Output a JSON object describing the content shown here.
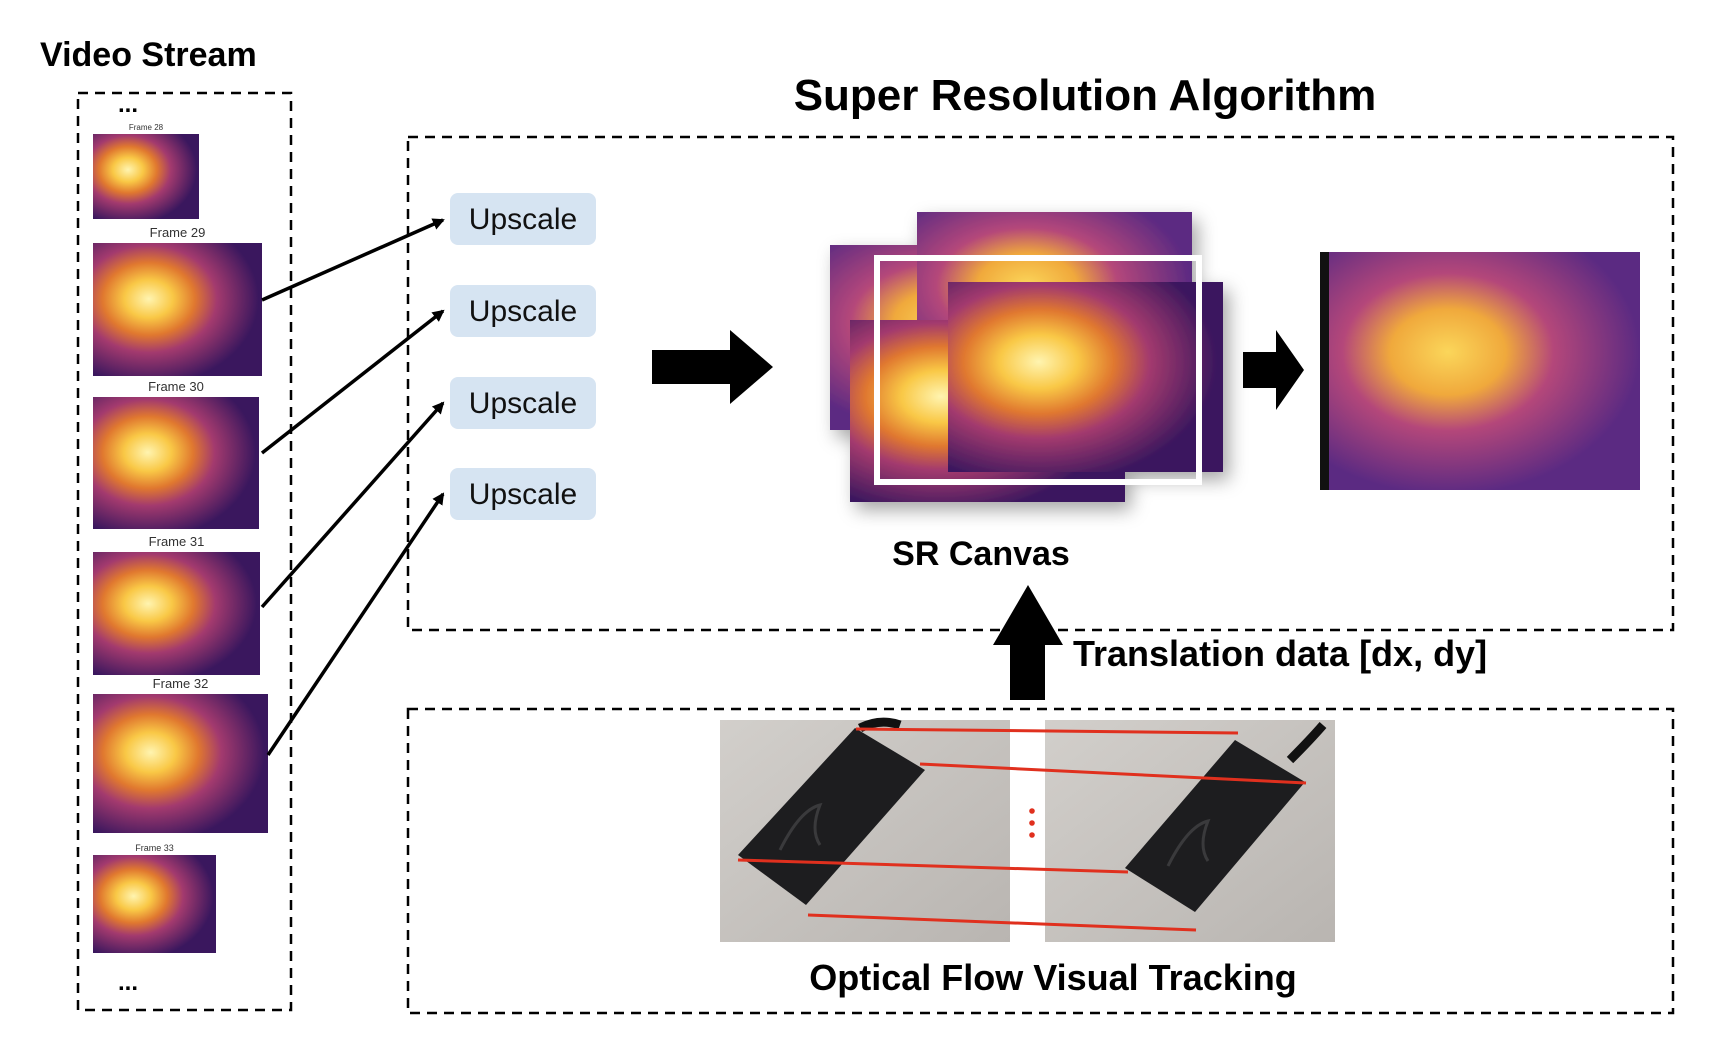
{
  "video_stream": {
    "title": "Video Stream",
    "ellipsis_top": "...",
    "ellipsis_bottom": "...",
    "frames": [
      {
        "label": "Frame 28"
      },
      {
        "label": "Frame 29"
      },
      {
        "label": "Frame 30"
      },
      {
        "label": "Frame 31"
      },
      {
        "label": "Frame 32"
      },
      {
        "label": "Frame 33"
      }
    ]
  },
  "sr_algorithm": {
    "title": "Super Resolution Algorithm",
    "upscale_buttons": [
      {
        "label": "Upscale"
      },
      {
        "label": "Upscale"
      },
      {
        "label": "Upscale"
      },
      {
        "label": "Upscale"
      }
    ],
    "canvas_label": "SR Canvas"
  },
  "translation": {
    "label": "Translation data [dx, dy]"
  },
  "optical_flow": {
    "label": "Optical Flow Visual Tracking"
  },
  "colors": {
    "heat_dark": "#2a1250",
    "heat_mid": "#9a3a7a",
    "heat_hot": "#f4c542",
    "heat_white": "#fff6b0",
    "button_fill": "#d6e4f2",
    "track_line": "#e0301e",
    "photo_bg": "#c9c6c2",
    "device": "#1d1d1f"
  }
}
